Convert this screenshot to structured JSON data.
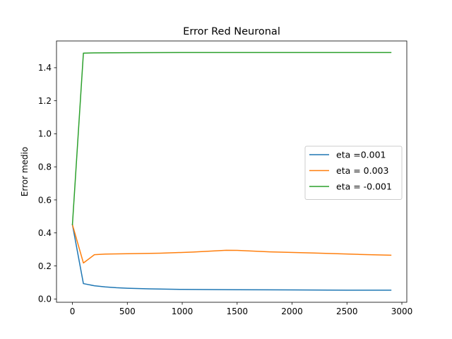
{
  "chart_data": {
    "type": "line",
    "title": "Error Red Neuronal",
    "xlabel": "",
    "ylabel": "Error medio",
    "xlim": [
      -145,
      3045
    ],
    "ylim": [
      -0.02,
      1.562
    ],
    "xticks": [
      0,
      500,
      1000,
      1500,
      2000,
      2500,
      3000
    ],
    "yticks": [
      0.0,
      0.2,
      0.4,
      0.6,
      0.8,
      1.0,
      1.2,
      1.4
    ],
    "xtick_labels": [
      "0",
      "500",
      "1000",
      "1500",
      "2000",
      "2500",
      "3000"
    ],
    "ytick_labels": [
      "0.0",
      "0.2",
      "0.4",
      "0.6",
      "0.8",
      "1.0",
      "1.2",
      "1.4"
    ],
    "grid": false,
    "legend_position": "center-right",
    "series": [
      {
        "name": "eta =0.001",
        "color": "#1f77b4",
        "x": [
          0,
          100,
          200,
          300,
          400,
          500,
          700,
          1000,
          1500,
          2000,
          2500,
          2900
        ],
        "y": [
          0.45,
          0.093,
          0.08,
          0.073,
          0.068,
          0.065,
          0.061,
          0.058,
          0.056,
          0.055,
          0.053,
          0.053
        ]
      },
      {
        "name": "eta = 0.003",
        "color": "#ff7f0e",
        "x": [
          0,
          100,
          200,
          300,
          500,
          800,
          1100,
          1400,
          1500,
          1800,
          2200,
          2600,
          2900
        ],
        "y": [
          0.45,
          0.218,
          0.268,
          0.272,
          0.274,
          0.277,
          0.284,
          0.295,
          0.294,
          0.285,
          0.278,
          0.27,
          0.265
        ]
      },
      {
        "name": "eta = -0.001",
        "color": "#2ca02c",
        "x": [
          0,
          100,
          200,
          500,
          1000,
          1500,
          2000,
          2500,
          2900
        ],
        "y": [
          0.45,
          1.488,
          1.49,
          1.491,
          1.492,
          1.492,
          1.492,
          1.492,
          1.492
        ]
      }
    ]
  }
}
